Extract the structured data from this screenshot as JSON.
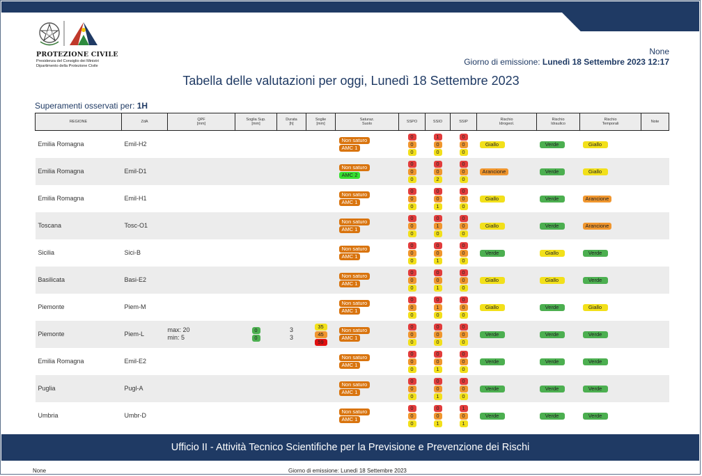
{
  "header": {
    "org_name": "PROTEZIONE CIVILE",
    "org_sub1": "Presidenza del Consiglio dei Ministri",
    "org_sub2": "Dipartimento della Protezione Civile",
    "top_right_value": "None",
    "emission_label": "Giorno di emissione: ",
    "emission_value": "Lunedì 18 Settembre 2023 12:17"
  },
  "title": "Tabella delle valutazioni per oggi, Lunedì 18 Settembre 2023",
  "superamenti": {
    "label": "Superamenti osservati per: ",
    "value": "1H"
  },
  "columns": [
    "REGIONE",
    "ZdA",
    "QPF\n[mm]",
    "Soglia Sup.\n[mm]",
    "Durata\n[h]",
    "Soglie\n[mm]",
    "Saturaz.\nSuolo",
    "SSPO",
    "SSIO",
    "SSIP",
    "Rischio\nIdrogeol.",
    "Rischio\nIdraulico",
    "Rischio\nTemporali",
    "Note"
  ],
  "colors": {
    "red": "#e23c3c",
    "orange": "#f0962e",
    "yellow": "#f2e01a",
    "green": "#4caf50",
    "lime": "#38e030",
    "brown": "#d9740e",
    "navy": "#1f3a64"
  },
  "rows": [
    {
      "regione": "Emilia Romagna",
      "zda": "Emil-H2",
      "qpf": [],
      "soglia_sup": [],
      "durata": [],
      "soglie": [],
      "sat": [
        "Non saturo",
        "AMC 1"
      ],
      "sat_colors": [
        "brown",
        "brown"
      ],
      "sspo": [
        "0",
        "0",
        "0"
      ],
      "ssio": [
        "1",
        "0",
        "0"
      ],
      "ssip": [
        "0",
        "0",
        "0"
      ],
      "idrogeol": "Giallo",
      "idraulico": "Verde",
      "temporali": "Giallo",
      "note": ""
    },
    {
      "regione": "Emilia Romagna",
      "zda": "Emil-D1",
      "qpf": [],
      "soglia_sup": [],
      "durata": [],
      "soglie": [],
      "sat": [
        "Non saturo",
        "AMC 2"
      ],
      "sat_colors": [
        "brown",
        "lime"
      ],
      "sspo": [
        "0",
        "0",
        "0"
      ],
      "ssio": [
        "0",
        "0",
        "2"
      ],
      "ssip": [
        "0",
        "0",
        "0"
      ],
      "idrogeol": "Arancione",
      "idraulico": "Verde",
      "temporali": "Giallo",
      "note": ""
    },
    {
      "regione": "Emilia Romagna",
      "zda": "Emil-H1",
      "qpf": [],
      "soglia_sup": [],
      "durata": [],
      "soglie": [],
      "sat": [
        "Non saturo",
        "AMC 1"
      ],
      "sat_colors": [
        "brown",
        "brown"
      ],
      "sspo": [
        "0",
        "0",
        "0"
      ],
      "ssio": [
        "0",
        "0",
        "1"
      ],
      "ssip": [
        "0",
        "0",
        "0"
      ],
      "idrogeol": "Giallo",
      "idraulico": "Verde",
      "temporali": "Arancione",
      "note": ""
    },
    {
      "regione": "Toscana",
      "zda": "Tosc-O1",
      "qpf": [],
      "soglia_sup": [],
      "durata": [],
      "soglie": [],
      "sat": [
        "Non saturo",
        "AMC 1"
      ],
      "sat_colors": [
        "brown",
        "brown"
      ],
      "sspo": [
        "0",
        "0",
        "0"
      ],
      "ssio": [
        "0",
        "1",
        "0"
      ],
      "ssip": [
        "0",
        "0",
        "0"
      ],
      "idrogeol": "Giallo",
      "idraulico": "Verde",
      "temporali": "Arancione",
      "note": ""
    },
    {
      "regione": "Sicilia",
      "zda": "Sici-B",
      "qpf": [],
      "soglia_sup": [],
      "durata": [],
      "soglie": [],
      "sat": [
        "Non saturo",
        "AMC 1"
      ],
      "sat_colors": [
        "brown",
        "brown"
      ],
      "sspo": [
        "0",
        "0",
        "0"
      ],
      "ssio": [
        "0",
        "0",
        "1"
      ],
      "ssip": [
        "0",
        "0",
        "0"
      ],
      "idrogeol": "Verde",
      "idraulico": "Giallo",
      "temporali": "Verde",
      "note": ""
    },
    {
      "regione": "Basilicata",
      "zda": "Basi-E2",
      "qpf": [],
      "soglia_sup": [],
      "durata": [],
      "soglie": [],
      "sat": [
        "Non saturo",
        "AMC 1"
      ],
      "sat_colors": [
        "brown",
        "brown"
      ],
      "sspo": [
        "0",
        "0",
        "0"
      ],
      "ssio": [
        "0",
        "0",
        "1"
      ],
      "ssip": [
        "0",
        "0",
        "0"
      ],
      "idrogeol": "Giallo",
      "idraulico": "Giallo",
      "temporali": "Verde",
      "note": ""
    },
    {
      "regione": "Piemonte",
      "zda": "Piem-M",
      "qpf": [],
      "soglia_sup": [],
      "durata": [],
      "soglie": [],
      "sat": [
        "Non saturo",
        "AMC 1"
      ],
      "sat_colors": [
        "brown",
        "brown"
      ],
      "sspo": [
        "0",
        "0",
        "0"
      ],
      "ssio": [
        "0",
        "1",
        "0"
      ],
      "ssip": [
        "0",
        "0",
        "0"
      ],
      "idrogeol": "Giallo",
      "idraulico": "Verde",
      "temporali": "Giallo",
      "note": ""
    },
    {
      "regione": "Piemonte",
      "zda": "Piem-L",
      "qpf": [
        "max: 20",
        "min: 5"
      ],
      "soglia_sup": [
        "0",
        "0"
      ],
      "durata": [
        "3",
        "3"
      ],
      "soglie": [
        "35",
        "45",
        "59"
      ],
      "sat": [
        "Non saturo",
        "AMC 1"
      ],
      "sat_colors": [
        "brown",
        "brown"
      ],
      "sspo": [
        "0",
        "0",
        "0"
      ],
      "ssio": [
        "0",
        "0",
        "0"
      ],
      "ssip": [
        "0",
        "0",
        "0"
      ],
      "idrogeol": "Verde",
      "idraulico": "Verde",
      "temporali": "Verde",
      "note": ""
    },
    {
      "regione": "Emilia Romagna",
      "zda": "Emil-E2",
      "qpf": [],
      "soglia_sup": [],
      "durata": [],
      "soglie": [],
      "sat": [
        "Non saturo",
        "AMC 1"
      ],
      "sat_colors": [
        "brown",
        "brown"
      ],
      "sspo": [
        "0",
        "0",
        "0"
      ],
      "ssio": [
        "0",
        "0",
        "1"
      ],
      "ssip": [
        "0",
        "0",
        "0"
      ],
      "idrogeol": "Verde",
      "idraulico": "Verde",
      "temporali": "Verde",
      "note": ""
    },
    {
      "regione": "Puglia",
      "zda": "Pugl-A",
      "qpf": [],
      "soglia_sup": [],
      "durata": [],
      "soglie": [],
      "sat": [
        "Non saturo",
        "AMC 1"
      ],
      "sat_colors": [
        "brown",
        "brown"
      ],
      "sspo": [
        "0",
        "0",
        "0"
      ],
      "ssio": [
        "0",
        "0",
        "1"
      ],
      "ssip": [
        "0",
        "0",
        "0"
      ],
      "idrogeol": "Verde",
      "idraulico": "Verde",
      "temporali": "Verde",
      "note": ""
    },
    {
      "regione": "Umbria",
      "zda": "Umbr-D",
      "qpf": [],
      "soglia_sup": [],
      "durata": [],
      "soglie": [],
      "sat": [
        "Non saturo",
        "AMC 1"
      ],
      "sat_colors": [
        "brown",
        "brown"
      ],
      "sspo": [
        "0",
        "0",
        "0"
      ],
      "ssio": [
        "0",
        "0",
        "1"
      ],
      "ssip": [
        "1",
        "0",
        "1"
      ],
      "idrogeol": "Verde",
      "idraulico": "Verde",
      "temporali": "Verde",
      "note": ""
    }
  ],
  "footer": {
    "office": "Ufficio II - Attività Tecnico Scientifiche per la Previsione e Prevenzione dei Rischi",
    "bottom_left": "None",
    "bottom_emission": "Giorno di emissione: Lunedì 18 Settembre 2023"
  }
}
